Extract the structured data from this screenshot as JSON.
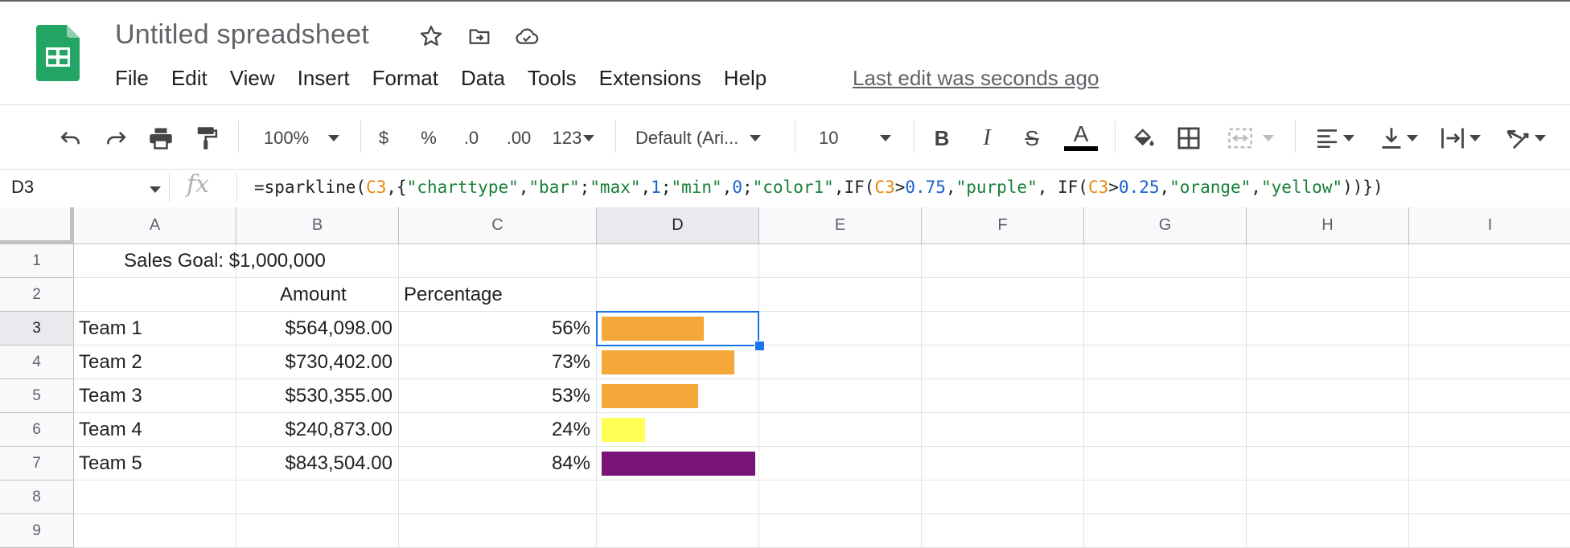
{
  "header": {
    "title": "Untitled spreadsheet",
    "menu": [
      "File",
      "Edit",
      "View",
      "Insert",
      "Format",
      "Data",
      "Tools",
      "Extensions",
      "Help"
    ],
    "last_edit": "Last edit was seconds ago"
  },
  "toolbar": {
    "zoom": "100%",
    "currency": "$",
    "percent": "%",
    "decrease_decimal": ".0",
    "increase_decimal": ".00",
    "more_formats": "123",
    "font": "Default (Ari...",
    "font_size": "10",
    "bold": "B",
    "italic": "I",
    "strike": "S",
    "text_color": "A"
  },
  "formula_bar": {
    "name_box": "D3",
    "parts": [
      "=sparkline(",
      "C3",
      ",{",
      "\"charttype\"",
      ",",
      "\"bar\"",
      ";",
      "\"max\"",
      ",",
      "1",
      ";",
      "\"min\"",
      ",",
      "0",
      ";",
      "\"color1\"",
      ",IF(",
      "C3",
      ">",
      "0.75",
      ",",
      "\"purple\"",
      ", IF(",
      "C3",
      ">",
      "0.25",
      ",",
      "\"orange\"",
      ",",
      "\"yellow\"",
      "))})"
    ]
  },
  "columns": [
    "A",
    "B",
    "C",
    "D",
    "E",
    "F",
    "G",
    "H",
    "I"
  ],
  "rows": [
    "1",
    "2",
    "3",
    "4",
    "5",
    "6",
    "7",
    "8",
    "9"
  ],
  "sheet": {
    "a1": "Sales Goal: $1,000,000",
    "b2": "Amount",
    "c2": "Percentage",
    "teams": [
      {
        "name": "Team 1",
        "amount": "$564,098.00",
        "pct": "56%",
        "bar": 0.564,
        "color": "#f4a83a"
      },
      {
        "name": "Team 2",
        "amount": "$730,402.00",
        "pct": "73%",
        "bar": 0.73,
        "color": "#f4a83a"
      },
      {
        "name": "Team 3",
        "amount": "$530,355.00",
        "pct": "53%",
        "bar": 0.53,
        "color": "#f4a83a"
      },
      {
        "name": "Team 4",
        "amount": "$240,873.00",
        "pct": "24%",
        "bar": 0.241,
        "color": "#ffff55"
      },
      {
        "name": "Team 5",
        "amount": "$843,504.00",
        "pct": "84%",
        "bar": 0.844,
        "color": "#7a1377"
      }
    ]
  }
}
